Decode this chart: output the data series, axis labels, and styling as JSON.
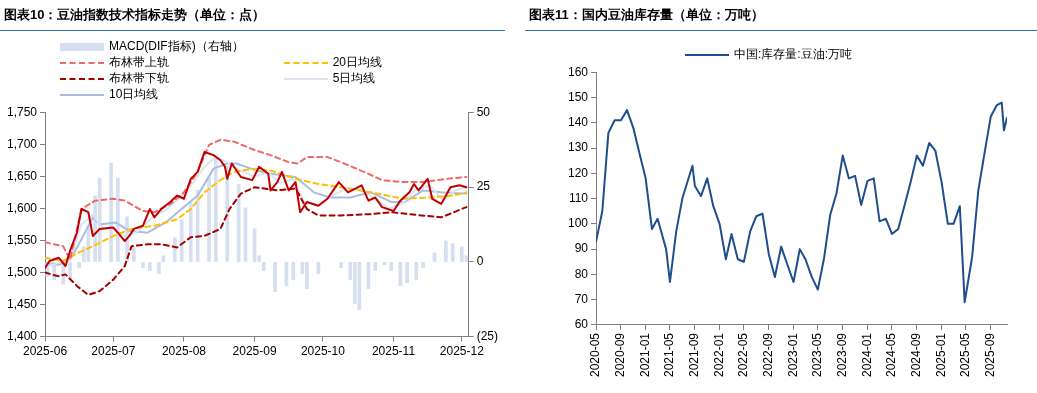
{
  "chart_data": [
    {
      "type": "line",
      "title": "图表10：豆油指数技术指标走势（单位：点）",
      "xlim": [
        "2025-06-01",
        "2025-12-04"
      ],
      "xticks": [
        "2025-06",
        "2025-07",
        "2025-08",
        "2025-09",
        "2025-10",
        "2025-11",
        "2025-12"
      ],
      "ylim": [
        1400,
        1750
      ],
      "yticks": [
        {
          "value": 1400,
          "label": "1,400"
        },
        {
          "value": 1450,
          "label": "1,450"
        },
        {
          "value": 1500,
          "label": "1,500"
        },
        {
          "value": 1550,
          "label": "1,550"
        },
        {
          "value": 1600,
          "label": "1,600"
        },
        {
          "value": 1650,
          "label": "1,650"
        },
        {
          "value": 1700,
          "label": "1,700"
        },
        {
          "value": 1750,
          "label": "1,750"
        }
      ],
      "y2lim": [
        -25,
        50
      ],
      "y2ticks": [
        {
          "value": -25,
          "label": "(25)"
        },
        0,
        25,
        50
      ],
      "legend": "top",
      "marker": "none",
      "series": [
        {
          "name": "MACD(DIF指标)（右轴）",
          "type": "bar",
          "axis": "y2",
          "color": "#d6dff0",
          "x": [
            "2025-06-02",
            "2025-06-05",
            "2025-06-09",
            "2025-06-12",
            "2025-06-16",
            "2025-06-18",
            "2025-06-20",
            "2025-06-23",
            "2025-06-25",
            "2025-06-30",
            "2025-07-03",
            "2025-07-07",
            "2025-07-10",
            "2025-07-14",
            "2025-07-17",
            "2025-07-21",
            "2025-07-23",
            "2025-07-28",
            "2025-07-31",
            "2025-08-04",
            "2025-08-07",
            "2025-08-12",
            "2025-08-15",
            "2025-08-20",
            "2025-08-25",
            "2025-08-28",
            "2025-09-01",
            "2025-09-03",
            "2025-09-05",
            "2025-09-10",
            "2025-09-15",
            "2025-09-18",
            "2025-09-22",
            "2025-09-24",
            "2025-09-29",
            "2025-10-09",
            "2025-10-13",
            "2025-10-15",
            "2025-10-17",
            "2025-10-21",
            "2025-10-24",
            "2025-10-28",
            "2025-10-31",
            "2025-11-04",
            "2025-11-07",
            "2025-11-11",
            "2025-11-14",
            "2025-11-19",
            "2025-11-24",
            "2025-11-27",
            "2025-12-01",
            "2025-12-03"
          ],
          "values": [
            -5,
            -6,
            -7.5,
            -6,
            -2,
            5,
            12,
            22,
            28,
            33,
            28,
            15,
            5,
            -2,
            -3,
            -4,
            2,
            8,
            14,
            20,
            24,
            28,
            35,
            32,
            26,
            18,
            11,
            2,
            -3,
            -10,
            -8,
            -6,
            -4,
            -9,
            -4,
            -2,
            -6,
            -14,
            -16,
            -9,
            -3,
            -1,
            -3,
            -8,
            -7,
            -6,
            -2,
            3,
            7,
            6,
            5,
            2
          ]
        },
        {
          "color": "#c00000",
          "x": [
            "2025-06-01",
            "2025-06-03",
            "2025-06-07",
            "2025-06-10",
            "2025-06-12",
            "2025-06-15",
            "2025-06-17",
            "2025-06-20",
            "2025-06-22",
            "2025-06-25",
            "2025-07-01",
            "2025-07-03",
            "2025-07-06",
            "2025-07-08",
            "2025-07-10",
            "2025-07-14",
            "2025-07-17",
            "2025-07-19",
            "2025-07-22",
            "2025-07-26",
            "2025-07-29",
            "2025-08-01",
            "2025-08-04",
            "2025-08-07",
            "2025-08-10",
            "2025-08-14",
            "2025-08-17",
            "2025-08-19",
            "2025-08-20",
            "2025-08-22",
            "2025-08-26",
            "2025-08-31",
            "2025-09-03",
            "2025-09-07",
            "2025-09-08",
            "2025-09-11",
            "2025-09-13",
            "2025-09-16",
            "2025-09-19",
            "2025-09-21",
            "2025-09-24",
            "2025-09-29",
            "2025-10-03",
            "2025-10-08",
            "2025-10-12",
            "2025-10-18",
            "2025-10-21",
            "2025-10-24",
            "2025-10-27",
            "2025-11-01",
            "2025-11-04",
            "2025-11-08",
            "2025-11-10",
            "2025-11-12",
            "2025-11-16",
            "2025-11-18",
            "2025-11-22",
            "2025-11-26",
            "2025-11-30",
            "2025-12-03"
          ],
          "values": [
            1507,
            1518,
            1523,
            1510,
            1534,
            1562,
            1599,
            1594,
            1557,
            1568,
            1570,
            1562,
            1549,
            1557,
            1568,
            1573,
            1599,
            1586,
            1599,
            1610,
            1620,
            1615,
            1646,
            1657,
            1688,
            1683,
            1675,
            1665,
            1646,
            1670,
            1649,
            1644,
            1665,
            1654,
            1628,
            1641,
            1657,
            1628,
            1641,
            1594,
            1610,
            1604,
            1615,
            1641,
            1625,
            1636,
            1612,
            1617,
            1602,
            1596,
            1612,
            1625,
            1638,
            1628,
            1646,
            1615,
            1607,
            1633,
            1636,
            1633
          ]
        },
        {
          "name": "布林带上轨",
          "color": "#ec6a6a",
          "line_style": "dashed",
          "x": [
            "2025-06-01",
            "2025-06-09",
            "2025-06-12",
            "2025-06-17",
            "2025-06-23",
            "2025-07-01",
            "2025-07-06",
            "2025-07-14",
            "2025-07-19",
            "2025-07-26",
            "2025-08-01",
            "2025-08-07",
            "2025-08-12",
            "2025-08-17",
            "2025-08-23",
            "2025-09-01",
            "2025-09-08",
            "2025-09-16",
            "2025-09-20",
            "2025-09-24",
            "2025-10-03",
            "2025-10-09",
            "2025-10-19",
            "2025-10-27",
            "2025-11-05",
            "2025-11-14",
            "2025-11-24",
            "2025-12-03"
          ],
          "values": [
            1547,
            1541,
            1520,
            1599,
            1612,
            1615,
            1612,
            1596,
            1594,
            1607,
            1625,
            1657,
            1699,
            1707,
            1704,
            1691,
            1683,
            1672,
            1670,
            1680,
            1680,
            1672,
            1657,
            1644,
            1641,
            1641,
            1646,
            1649
          ]
        },
        {
          "name": "20日均线",
          "color": "#ffc000",
          "line_style": "dashed",
          "x": [
            "2025-06-01",
            "2025-06-09",
            "2025-06-14",
            "2025-06-22",
            "2025-07-01",
            "2025-07-09",
            "2025-07-19",
            "2025-07-29",
            "2025-08-04",
            "2025-08-10",
            "2025-08-17",
            "2025-08-23",
            "2025-09-01",
            "2025-09-08",
            "2025-09-19",
            "2025-09-29",
            "2025-10-09",
            "2025-10-22",
            "2025-11-05",
            "2025-11-17",
            "2025-11-27",
            "2025-12-03"
          ],
          "values": [
            1523,
            1518,
            1528,
            1541,
            1557,
            1568,
            1573,
            1583,
            1599,
            1625,
            1644,
            1657,
            1662,
            1659,
            1646,
            1638,
            1633,
            1625,
            1615,
            1617,
            1620,
            1625
          ]
        },
        {
          "name": "布林带下轨",
          "color": "#a50000",
          "line_style": "dashed",
          "x": [
            "2025-06-01",
            "2025-06-07",
            "2025-06-10",
            "2025-06-15",
            "2025-06-20",
            "2025-06-25",
            "2025-07-01",
            "2025-07-06",
            "2025-07-09",
            "2025-07-16",
            "2025-07-22",
            "2025-07-29",
            "2025-08-04",
            "2025-08-10",
            "2025-08-17",
            "2025-08-21",
            "2025-08-26",
            "2025-09-01",
            "2025-09-11",
            "2025-09-19",
            "2025-09-24",
            "2025-09-29",
            "2025-10-09",
            "2025-10-22",
            "2025-10-31",
            "2025-11-08",
            "2025-11-22",
            "2025-12-03"
          ],
          "values": [
            1500,
            1494,
            1497,
            1479,
            1465,
            1471,
            1489,
            1510,
            1541,
            1544,
            1544,
            1539,
            1555,
            1557,
            1568,
            1599,
            1623,
            1633,
            1628,
            1631,
            1599,
            1589,
            1589,
            1591,
            1594,
            1591,
            1586,
            1602
          ]
        },
        {
          "name": "5日均线",
          "color": "#dce4f2",
          "x": [
            "2025-06-01",
            "2025-06-07",
            "2025-06-12",
            "2025-06-17",
            "2025-06-22",
            "2025-06-26",
            "2025-07-02",
            "2025-07-07",
            "2025-07-12",
            "2025-07-18",
            "2025-07-24",
            "2025-07-30",
            "2025-08-05",
            "2025-08-10",
            "2025-08-15",
            "2025-08-20",
            "2025-08-25",
            "2025-09-01",
            "2025-09-07",
            "2025-09-12",
            "2025-09-18",
            "2025-09-23",
            "2025-09-29",
            "2025-10-05",
            "2025-10-12",
            "2025-10-18",
            "2025-10-24",
            "2025-10-30",
            "2025-11-05",
            "2025-11-11",
            "2025-11-17",
            "2025-11-23",
            "2025-11-28",
            "2025-12-03"
          ],
          "values": [
            1508,
            1515,
            1520,
            1575,
            1590,
            1570,
            1567,
            1555,
            1565,
            1585,
            1598,
            1615,
            1640,
            1665,
            1680,
            1672,
            1660,
            1650,
            1656,
            1640,
            1645,
            1610,
            1605,
            1620,
            1632,
            1628,
            1615,
            1600,
            1608,
            1630,
            1636,
            1612,
            1628,
            1633
          ]
        },
        {
          "name": "10日均线",
          "color": "#a9bde0",
          "x": [
            "2025-06-01",
            "2025-06-07",
            "2025-06-12",
            "2025-06-17",
            "2025-06-22",
            "2025-06-25",
            "2025-07-02",
            "2025-07-08",
            "2025-07-16",
            "2025-07-24",
            "2025-08-01",
            "2025-08-07",
            "2025-08-14",
            "2025-08-20",
            "2025-08-24",
            "2025-09-01",
            "2025-09-08",
            "2025-09-19",
            "2025-09-27",
            "2025-10-04",
            "2025-10-13",
            "2025-10-22",
            "2025-10-31",
            "2025-11-06",
            "2025-11-14",
            "2025-11-22",
            "2025-12-03"
          ],
          "values": [
            1515,
            1512,
            1520,
            1552,
            1586,
            1575,
            1578,
            1565,
            1562,
            1578,
            1602,
            1620,
            1662,
            1670,
            1670,
            1660,
            1654,
            1649,
            1625,
            1617,
            1617,
            1625,
            1610,
            1610,
            1628,
            1625,
            1623
          ]
        }
      ]
    },
    {
      "type": "line",
      "title": "图表11：国内豆油库存量（单位：万吨）",
      "xlim": [
        "2020-05",
        "2025-11-20"
      ],
      "xticks": [
        "2020-05",
        "2020-09",
        "2021-01",
        "2021-05",
        "2021-09",
        "2022-01",
        "2022-05",
        "2022-09",
        "2023-01",
        "2023-05",
        "2023-09",
        "2024-01",
        "2024-05",
        "2024-09",
        "2025-01",
        "2025-05",
        "2025-09"
      ],
      "ylim": [
        60,
        160
      ],
      "yticks": [
        60,
        70,
        80,
        90,
        100,
        110,
        120,
        130,
        140,
        150,
        160
      ],
      "legend": "top",
      "marker": "none",
      "series": [
        {
          "name": "中国:库存量:豆油:万吨",
          "color": "#1f4e8c",
          "x": [
            "2020-05",
            "2020-06",
            "2020-07",
            "2020-08",
            "2020-09",
            "2020-10",
            "2020-11",
            "2020-12",
            "2021-01",
            "2021-02",
            "2021-03",
            "2021-04-12",
            "2021-05",
            "2021-06",
            "2021-07",
            "2021-08-20",
            "2021-09",
            "2021-10",
            "2021-11",
            "2021-12",
            "2022-01",
            "2022-02",
            "2022-03",
            "2022-04",
            "2022-05",
            "2022-06",
            "2022-07",
            "2022-08",
            "2022-09",
            "2022-10",
            "2022-11",
            "2022-12",
            "2023-01",
            "2023-02",
            "2023-03",
            "2023-04",
            "2023-05",
            "2023-06",
            "2023-07",
            "2023-08",
            "2023-09",
            "2023-10",
            "2023-11",
            "2023-12",
            "2024-01",
            "2024-02",
            "2024-03",
            "2024-04",
            "2024-05",
            "2024-06",
            "2024-07",
            "2024-08",
            "2024-09",
            "2024-10",
            "2024-11",
            "2024-12",
            "2025-01",
            "2025-02",
            "2025-03",
            "2025-04",
            "2025-04-25",
            "2025-06",
            "2025-07",
            "2025-08",
            "2025-09",
            "2025-10",
            "2025-10-25",
            "2025-11-05",
            "2025-11-20"
          ],
          "values": [
            93,
            105,
            136,
            141,
            141,
            145,
            138,
            128,
            118,
            98,
            102,
            90,
            77,
            97,
            110,
            123,
            115,
            111,
            118,
            107,
            100,
            86,
            96,
            86,
            85,
            97,
            103,
            104,
            88,
            79,
            91,
            84,
            77,
            90,
            86,
            79,
            74,
            86.5,
            103.5,
            112,
            127,
            118,
            119,
            107.5,
            117,
            118,
            101,
            102,
            96,
            98,
            107,
            116.5,
            127,
            123,
            132,
            129,
            116.5,
            100,
            100,
            107,
            69,
            87,
            113,
            128,
            142.5,
            147,
            148,
            137,
            142
          ]
        }
      ]
    }
  ]
}
